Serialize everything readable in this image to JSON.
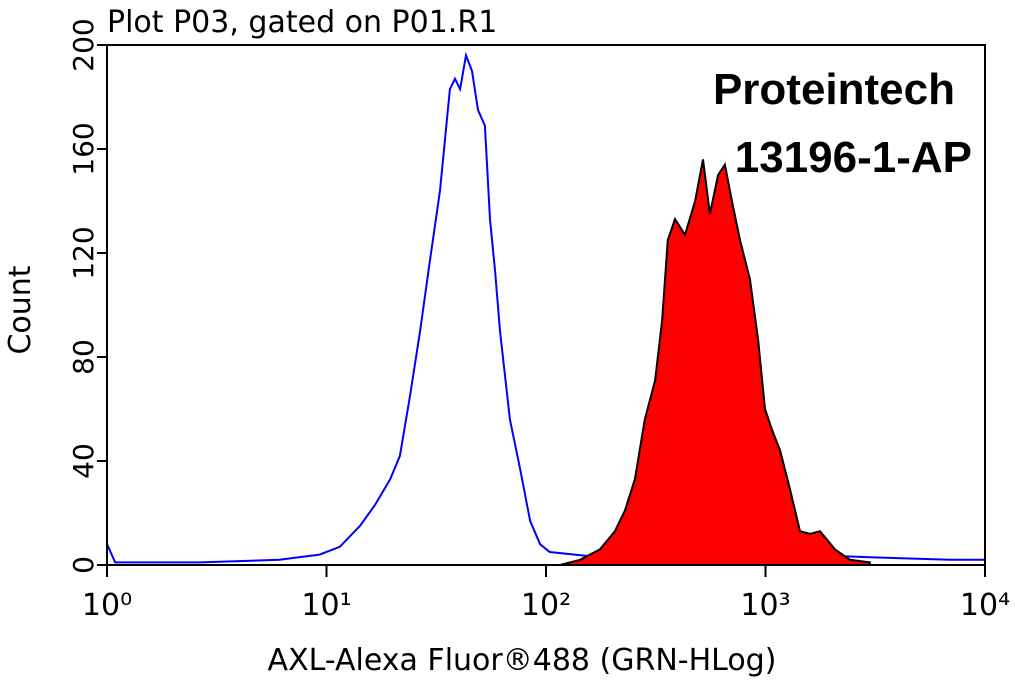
{
  "chart_data": {
    "type": "histogram-overlay",
    "title": "Plot P03, gated on P01.R1",
    "x_label": "AXL-Alexa Fluor®488 (GRN-HLog)",
    "y_label": "Count",
    "annotations": [
      "Proteintech",
      "13196-1-AP"
    ],
    "x_scale": "log",
    "xlim": [
      1,
      10000
    ],
    "ylim": [
      0,
      200
    ],
    "xticks": [
      {
        "value": 1,
        "label": "10⁰"
      },
      {
        "value": 10,
        "label": "10¹"
      },
      {
        "value": 100,
        "label": "10²"
      },
      {
        "value": 1000,
        "label": "10³"
      },
      {
        "value": 10000,
        "label": "10⁴"
      }
    ],
    "yticks": [
      0,
      40,
      80,
      120,
      160,
      200
    ],
    "series": [
      {
        "color": "#0000ff",
        "style": "outline",
        "x": [
          1,
          1.09,
          2.65,
          6.1,
          9.3,
          11.5,
          14.2,
          16.6,
          19.5,
          21.6,
          24,
          26.7,
          29.6,
          32.9,
          36.5,
          38.5,
          40.6,
          43.2,
          46,
          49,
          52.7,
          55.6,
          58.6,
          61.7,
          68.5,
          76.2,
          84.6,
          94,
          104,
          176,
          503,
          1436,
          2990,
          6930,
          10000
        ],
        "values": [
          8,
          1,
          1,
          2,
          4,
          7,
          15,
          23,
          33,
          42,
          65,
          90,
          117,
          144,
          183,
          187,
          183,
          196,
          190,
          175,
          169,
          133,
          113,
          90,
          56,
          37,
          17,
          8,
          5,
          3,
          2,
          4,
          3,
          2,
          2
        ]
      },
      {
        "color": "#ff0000",
        "style": "filled",
        "x": [
          116,
          143,
          176,
          206,
          229,
          254,
          282,
          314,
          338,
          359,
          387,
          430,
          478,
          519,
          558,
          608,
          653,
          703,
          765,
          849,
          924,
          995,
          1071,
          1165,
          1294,
          1436,
          1596,
          1771,
          2073,
          2427,
          2990
        ],
        "values": [
          0,
          2,
          6,
          13,
          21,
          33,
          56,
          71,
          94,
          125,
          133,
          127,
          140,
          156,
          135,
          150,
          154,
          140,
          125,
          110,
          87,
          60,
          52,
          44,
          29,
          13,
          12,
          13,
          6,
          2,
          1
        ]
      }
    ]
  }
}
